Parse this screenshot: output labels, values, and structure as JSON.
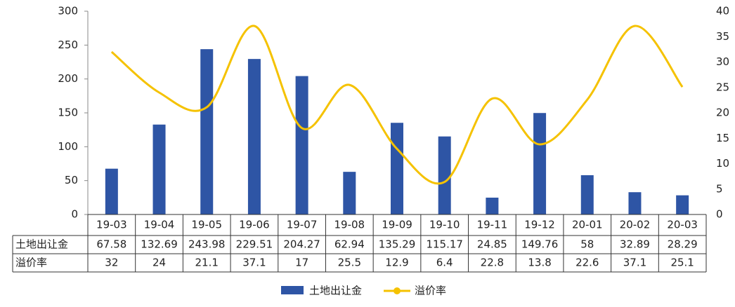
{
  "chart_data": {
    "type": "bar-line-table",
    "categories": [
      "19-03",
      "19-04",
      "19-05",
      "19-06",
      "19-07",
      "19-08",
      "19-09",
      "19-10",
      "19-11",
      "19-12",
      "20-01",
      "20-02",
      "20-03"
    ],
    "series": [
      {
        "name": "土地出让金",
        "color": "#2e55a5",
        "type": "bar",
        "values": [
          67.58,
          132.69,
          243.98,
          229.51,
          204.27,
          62.94,
          135.29,
          115.17,
          24.85,
          149.76,
          58,
          32.89,
          28.29
        ]
      },
      {
        "name": "溢价率",
        "color": "#f5c200",
        "type": "line",
        "axis": "y2",
        "values": [
          32,
          24,
          21.1,
          37.1,
          17,
          25.5,
          12.9,
          6.4,
          22.8,
          13.8,
          22.6,
          37.1,
          25.1
        ]
      }
    ],
    "ylim": [
      0,
      300
    ],
    "yticks": [
      0,
      50,
      100,
      150,
      200,
      250,
      300
    ],
    "y2lim": [
      0,
      40
    ],
    "y2ticks": [
      0,
      5,
      10,
      15,
      20,
      25,
      30,
      35,
      40
    ],
    "legend": "bottom",
    "grid": false
  }
}
